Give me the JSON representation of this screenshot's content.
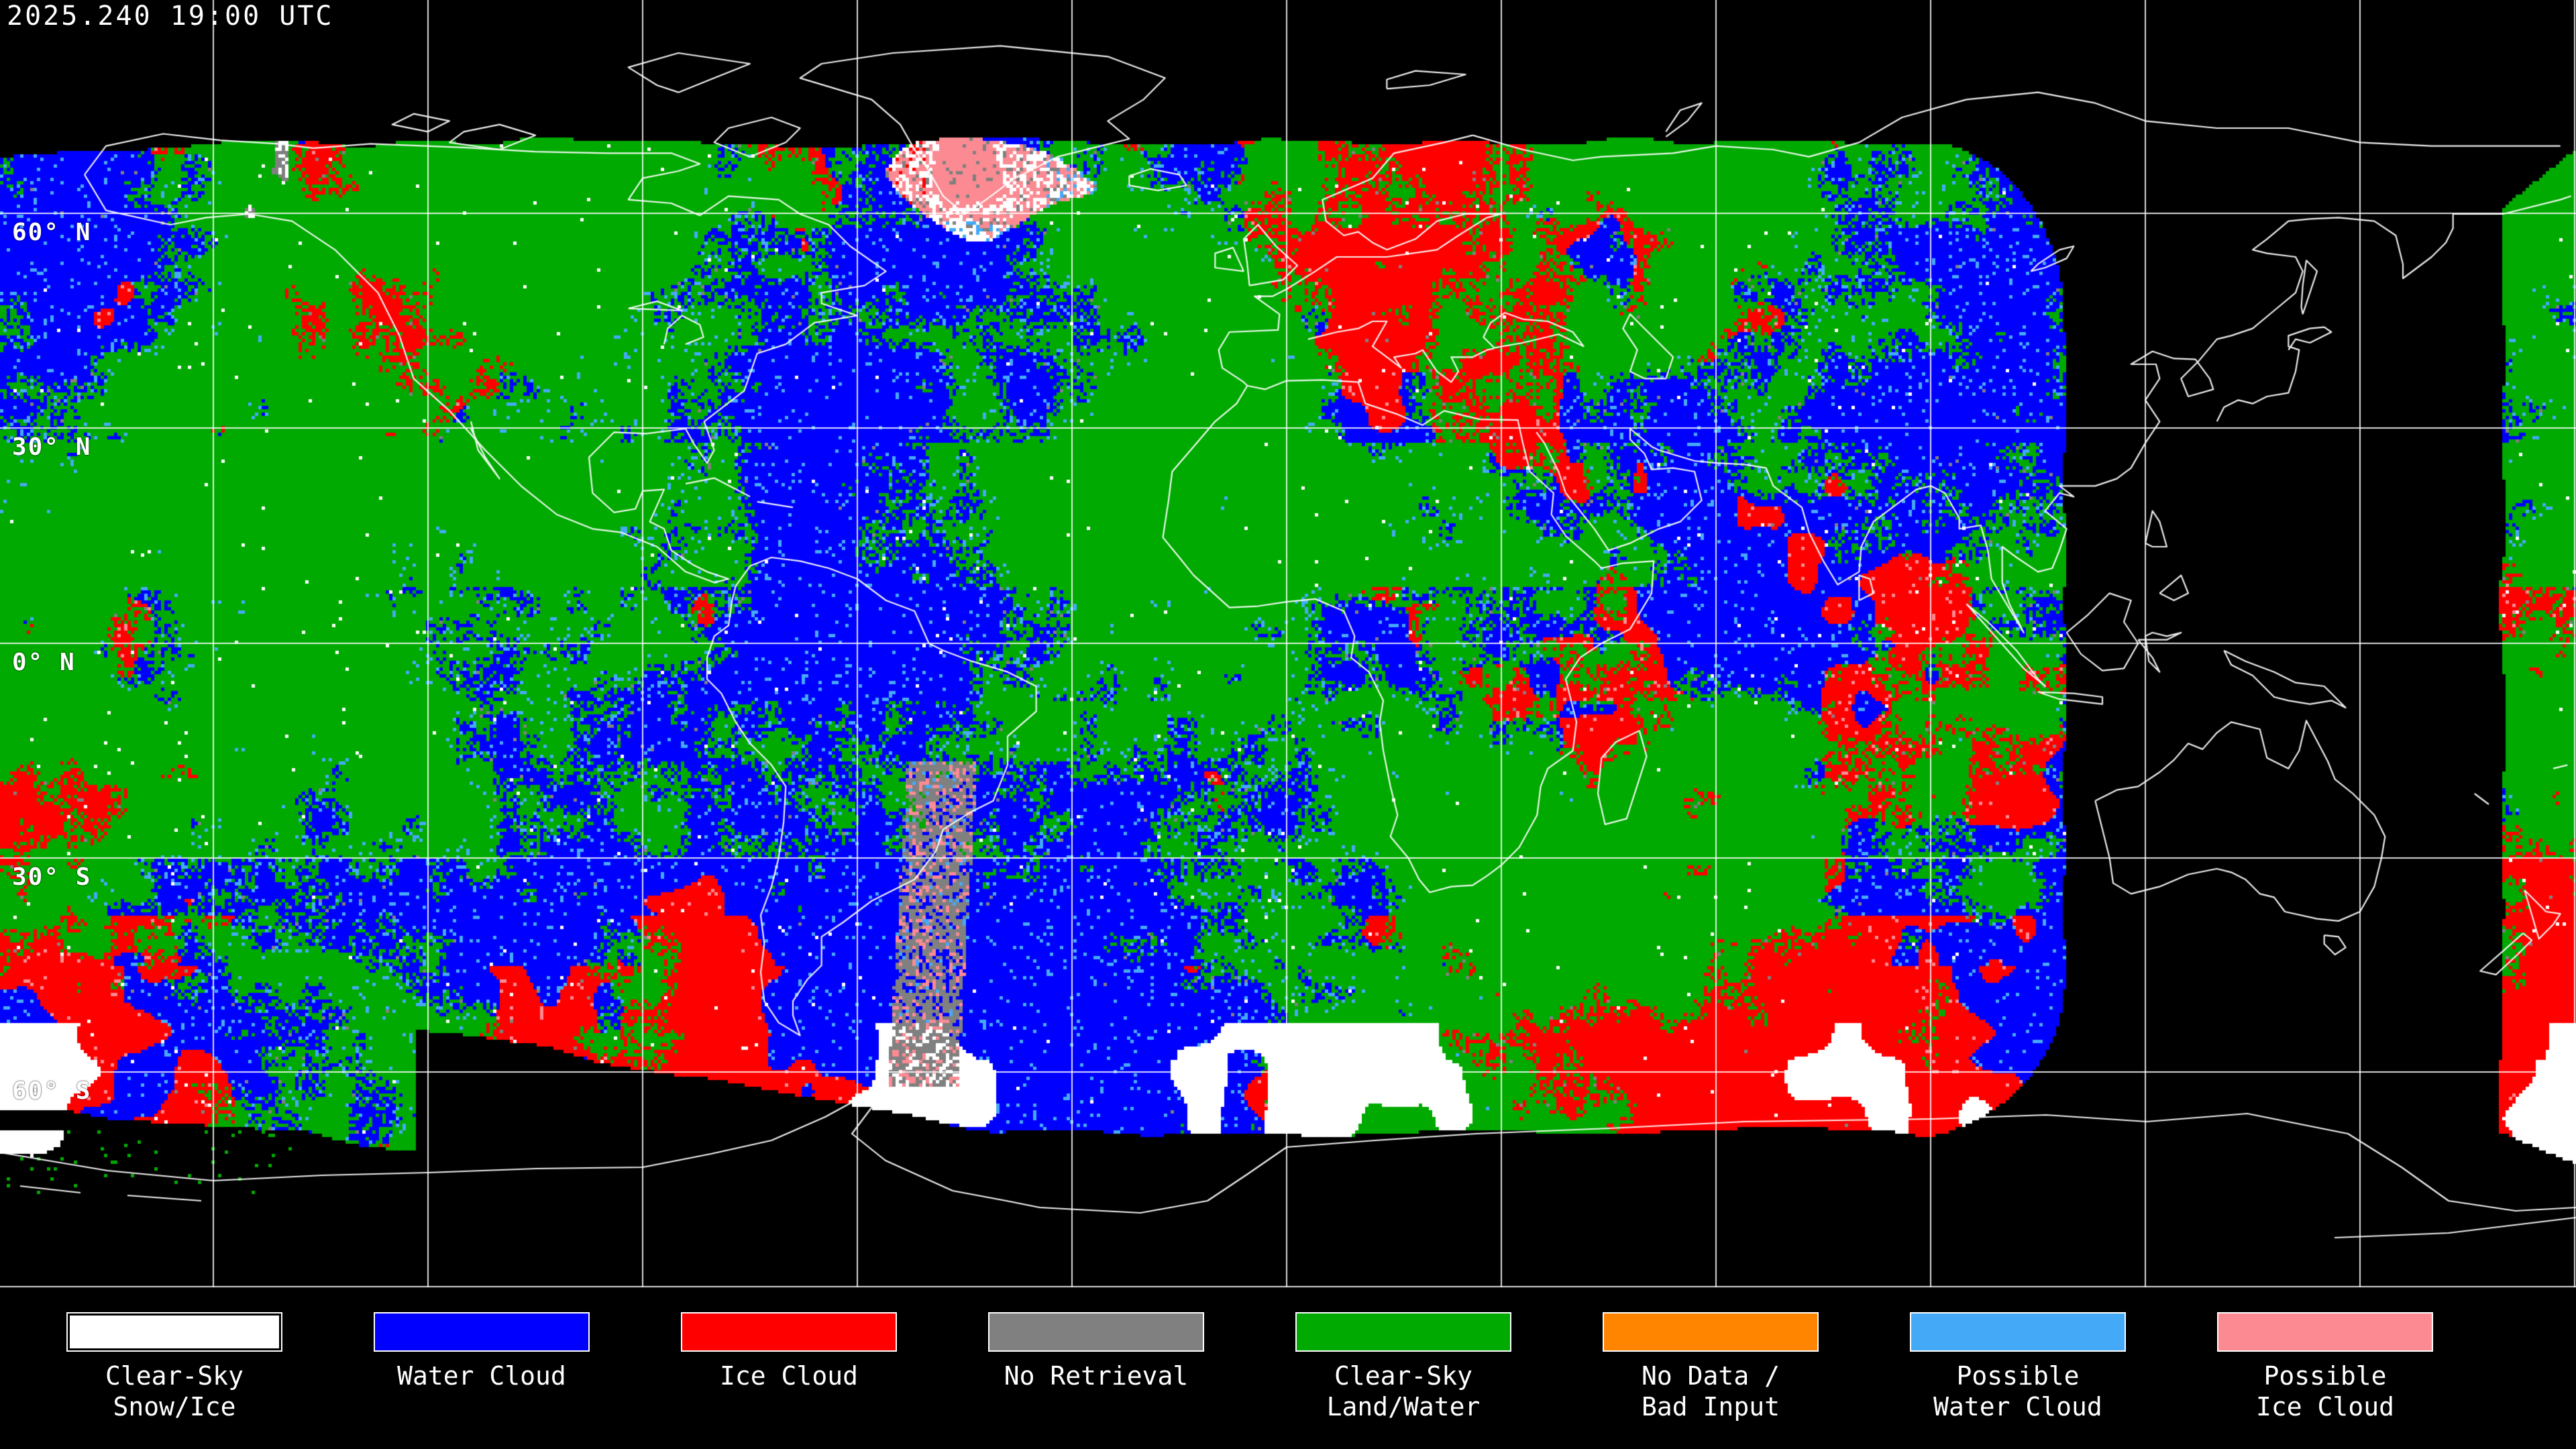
{
  "timestamp": "2025.240 19:00 UTC",
  "map": {
    "projection": "equirectangular",
    "grid_interval_deg": 30,
    "lat_labels": [
      "60° N",
      "30° N",
      "0° N",
      "30° S",
      "60° S"
    ]
  },
  "palette": {
    "background": "#000000",
    "clear_sky_snow_ice": "#ffffff",
    "water_cloud": "#0000ff",
    "ice_cloud": "#ff0000",
    "no_retrieval": "#808080",
    "clear_sky_land_water": "#00aa00",
    "no_data_bad_input": "#ff8400",
    "possible_water_cloud": "#44aaf7",
    "possible_ice_cloud": "#fb8a92",
    "coastline": "#ffffff",
    "gridline": "#ffffff",
    "text": "#ffffff"
  },
  "legend": {
    "items": [
      {
        "key": "clear_sky_snow_ice",
        "color": "#ffffff",
        "label": "Clear-Sky\nSnow/Ice"
      },
      {
        "key": "water_cloud",
        "color": "#0000ff",
        "label": "Water Cloud"
      },
      {
        "key": "ice_cloud",
        "color": "#ff0000",
        "label": "Ice Cloud"
      },
      {
        "key": "no_retrieval",
        "color": "#808080",
        "label": "No Retrieval"
      },
      {
        "key": "clear_sky_land_water",
        "color": "#00aa00",
        "label": "Clear-Sky\nLand/Water"
      },
      {
        "key": "no_data_bad_input",
        "color": "#ff8400",
        "label": "No Data /\nBad Input"
      },
      {
        "key": "possible_water_cloud",
        "color": "#44aaf7",
        "label": "Possible\nWater Cloud"
      },
      {
        "key": "possible_ice_cloud",
        "color": "#fb8a92",
        "label": "Possible\nIce Cloud"
      }
    ]
  }
}
